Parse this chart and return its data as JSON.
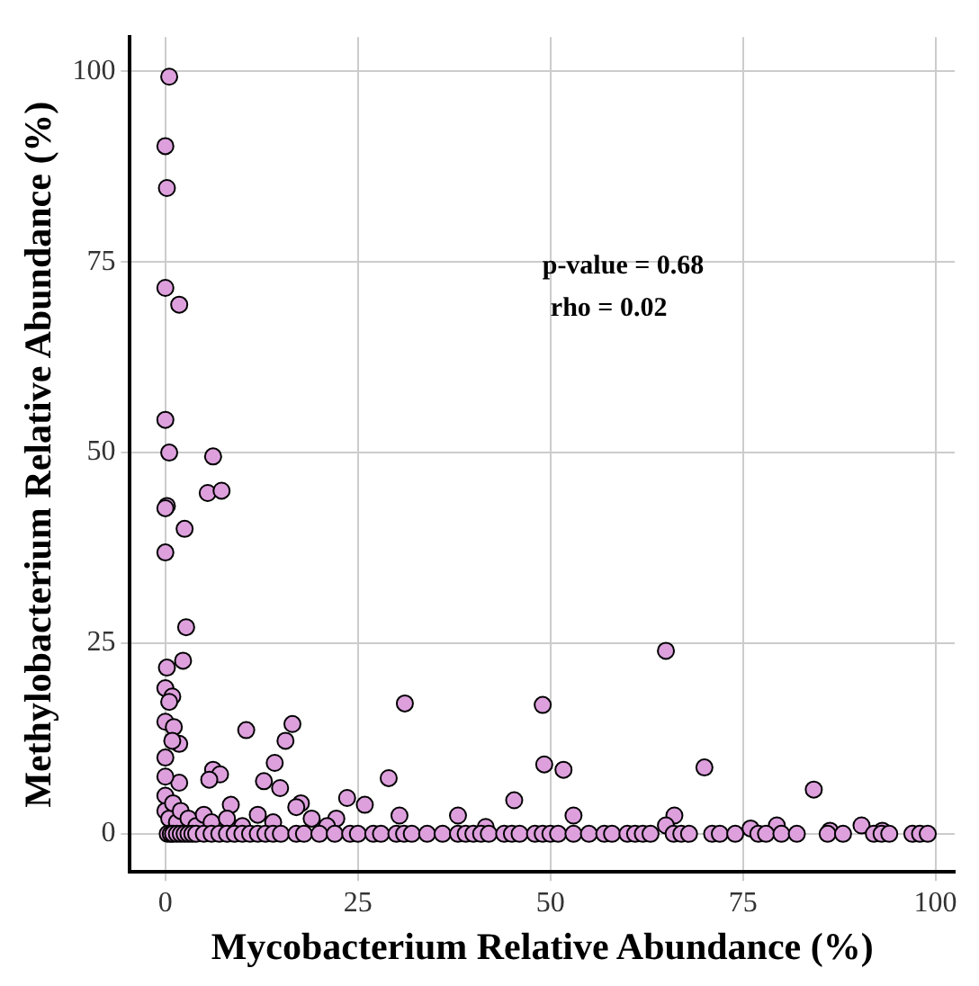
{
  "chart_data": {
    "type": "scatter",
    "xlabel": "Mycobacterium Relative Abundance (%)",
    "ylabel": "Methylobacterium Relative Abundance (%)",
    "annotations": [
      "p-value = 0.68",
      "rho = 0.02"
    ],
    "xlim": [
      -4.6,
      102.5
    ],
    "ylim": [
      -5,
      104.5
    ],
    "xticks": [
      0,
      25,
      50,
      75,
      100
    ],
    "yticks": [
      0,
      25,
      50,
      75,
      100
    ],
    "grid": true,
    "legend": false,
    "marker": "circle",
    "series": [
      {
        "color": "#dda0dd",
        "x": [
          0.5,
          0,
          0.2,
          0,
          1.8,
          0,
          0.5,
          6.2,
          5.5,
          7.3,
          0.2,
          0,
          2.5,
          0,
          2.7,
          0.2,
          2.3,
          0,
          0.9,
          0.5,
          0,
          1.1,
          1.8,
          0.9,
          10.5,
          16.5,
          15.6,
          14.2,
          12.8,
          14.9,
          29,
          31.1,
          49,
          49.2,
          51.7,
          6.2,
          7.1,
          5.7,
          1.8,
          0,
          8.5,
          17.6,
          23.6,
          25.9,
          22.2,
          45.3,
          38,
          41.6,
          30.4,
          65,
          53,
          66.1,
          65,
          70,
          84.2,
          79.4,
          76,
          86.3,
          90.4,
          93.1,
          0,
          0,
          0,
          0.5,
          1,
          1.5,
          2,
          3,
          4,
          5,
          6,
          8,
          10,
          12,
          14,
          17,
          19,
          21,
          0.3,
          0.7,
          1,
          1.5,
          2,
          2.5,
          3,
          3.5,
          4,
          5,
          6,
          7,
          8,
          9,
          10,
          11,
          12,
          13,
          14,
          15,
          17,
          18,
          20,
          22,
          24,
          25,
          27,
          28,
          30,
          31,
          32,
          34,
          36,
          38,
          39,
          40,
          41,
          42,
          44,
          45,
          46,
          48,
          49,
          50,
          51,
          53,
          55,
          57,
          58,
          60,
          61,
          62,
          63,
          66,
          67,
          68,
          71,
          72,
          74,
          77,
          78,
          80,
          82,
          86,
          88,
          92,
          93,
          94,
          97,
          98,
          99
        ],
        "values": [
          99.3,
          90.2,
          84.7,
          71.6,
          69.4,
          54.3,
          50,
          49.5,
          44.7,
          45,
          43,
          42.7,
          40,
          36.9,
          27.1,
          21.8,
          22.7,
          19.1,
          18,
          17.3,
          14.7,
          14,
          11.8,
          12.2,
          13.6,
          14.4,
          12.2,
          9.3,
          6.9,
          6,
          7.3,
          17.1,
          16.9,
          9.1,
          8.4,
          8.4,
          7.8,
          7.1,
          6.7,
          7.5,
          3.8,
          4,
          4.7,
          3.8,
          2,
          4.4,
          2.4,
          0.9,
          2.4,
          24,
          2.4,
          2.4,
          1.1,
          8.7,
          5.8,
          1.1,
          0.7,
          0.4,
          1.1,
          0.4,
          10,
          5,
          3,
          2,
          4,
          1.5,
          3,
          2,
          1,
          2.5,
          1.5,
          2,
          1,
          2.5,
          1.5,
          3.5,
          2,
          1,
          0,
          0,
          0,
          0,
          0,
          0,
          0,
          0,
          0,
          0,
          0,
          0,
          0,
          0,
          0,
          0,
          0,
          0,
          0,
          0,
          0,
          0,
          0,
          0,
          0,
          0,
          0,
          0,
          0,
          0,
          0,
          0,
          0,
          0,
          0,
          0,
          0,
          0,
          0,
          0,
          0,
          0,
          0,
          0,
          0,
          0,
          0,
          0,
          0,
          0,
          0,
          0,
          0,
          0,
          0,
          0,
          0,
          0,
          0,
          0,
          0,
          0,
          0,
          0,
          0,
          0,
          0,
          0,
          0,
          0,
          0
        ]
      }
    ]
  }
}
